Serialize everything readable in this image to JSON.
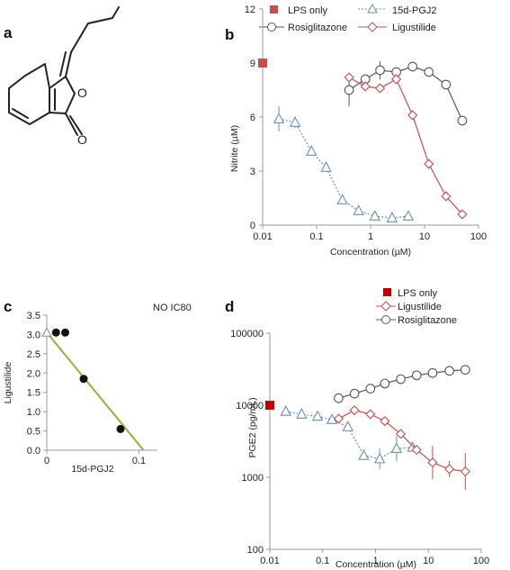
{
  "panels": {
    "a": "a",
    "b": "b",
    "c": "c",
    "d": "d"
  },
  "colors": {
    "lps_b": "#c0504d",
    "lps_d": "#c00000",
    "rosi": "#555555",
    "pgj": "#6d8fb0",
    "lig": "#c0504d",
    "iso_line": "#8cb43a",
    "structure": "#222222"
  },
  "chart_data": [
    {
      "id": "b",
      "type": "line",
      "xlabel": "Concentration (µM)",
      "ylabel": "Nitrite (µM)",
      "x_scale": "log",
      "xlim": [
        0.01,
        100
      ],
      "ylim": [
        0,
        12
      ],
      "xticks": [
        "0.01",
        "0.1",
        "1",
        "10",
        "100"
      ],
      "yticks": [
        "0",
        "3",
        "6",
        "9",
        "12"
      ],
      "legend": [
        "LPS only",
        "15d-PGJ2",
        "Rosiglitazone",
        "Ligustilide"
      ],
      "series": [
        {
          "name": "LPS only",
          "marker": "square",
          "points": [
            [
              0.01,
              9.0
            ]
          ]
        },
        {
          "name": "15d-PGJ2",
          "marker": "triangle",
          "line": "dotted",
          "points": [
            [
              0.02,
              5.9
            ],
            [
              0.04,
              5.7
            ],
            [
              0.08,
              4.1
            ],
            [
              0.15,
              3.2
            ],
            [
              0.3,
              1.4
            ],
            [
              0.6,
              0.8
            ],
            [
              1.2,
              0.5
            ],
            [
              2.5,
              0.4
            ],
            [
              5,
              0.5
            ]
          ],
          "err": [
            0.7,
            0.3,
            0,
            0,
            0,
            0,
            0,
            0,
            0
          ]
        },
        {
          "name": "Rosiglitazone",
          "marker": "circle",
          "line": "solid",
          "points": [
            [
              0.4,
              7.5
            ],
            [
              0.8,
              8.1
            ],
            [
              1.5,
              8.6
            ],
            [
              3,
              8.5
            ],
            [
              6,
              8.8
            ],
            [
              12,
              8.5
            ],
            [
              25,
              7.8
            ],
            [
              50,
              5.8
            ]
          ],
          "err": [
            0.9,
            0,
            0.5,
            0,
            0,
            0,
            0,
            0
          ]
        },
        {
          "name": "Ligustilide",
          "marker": "diamond",
          "line": "solid",
          "points": [
            [
              0.4,
              8.2
            ],
            [
              0.8,
              7.7
            ],
            [
              1.5,
              7.6
            ],
            [
              3,
              8.1
            ],
            [
              6,
              6.1
            ],
            [
              12,
              3.4
            ],
            [
              25,
              1.6
            ],
            [
              50,
              0.6
            ]
          ],
          "err": [
            0,
            0,
            0,
            0,
            0,
            0,
            0,
            0
          ]
        }
      ]
    },
    {
      "id": "c",
      "type": "scatter",
      "title": "NO IC80",
      "xlabel": "15d-PGJ2",
      "ylabel": "Ligustilide",
      "xlim": [
        0,
        0.12
      ],
      "ylim": [
        0,
        3.5
      ],
      "xticks": [
        "0",
        "0.1"
      ],
      "yticks": [
        "0.0",
        "0.5",
        "1.0",
        "1.5",
        "2.0",
        "2.5",
        "3.0",
        "3.5"
      ],
      "points": [
        [
          0.01,
          3.05
        ],
        [
          0.02,
          3.05
        ],
        [
          0.04,
          1.85
        ],
        [
          0.08,
          0.55
        ]
      ],
      "isobole": [
        [
          0,
          3.05
        ],
        [
          0.105,
          0.0
        ]
      ]
    },
    {
      "id": "d",
      "type": "line",
      "xlabel": "Concentration (µM)",
      "ylabel": "PGE2 (pg/mL)",
      "x_scale": "log",
      "y_scale": "log",
      "xlim": [
        0.01,
        100
      ],
      "ylim": [
        100,
        100000
      ],
      "xticks": [
        "0.01",
        "0.1",
        "1",
        "10",
        "100"
      ],
      "yticks": [
        "100",
        "1000",
        "10000",
        "100000"
      ],
      "legend": [
        "LPS only",
        "Ligustilide",
        "Rosiglitazone"
      ],
      "series": [
        {
          "name": "LPS only",
          "marker": "square",
          "points": [
            [
              0.01,
              10000
            ]
          ]
        },
        {
          "name": "15d-PGJ2",
          "marker": "triangle",
          "line": "dotted",
          "points": [
            [
              0.02,
              8200
            ],
            [
              0.04,
              7500
            ],
            [
              0.08,
              7000
            ],
            [
              0.15,
              6300
            ],
            [
              0.3,
              5000
            ],
            [
              0.6,
              2000
            ],
            [
              1.2,
              1800
            ],
            [
              2.5,
              2500
            ],
            [
              5,
              2600
            ]
          ],
          "err_ratio": [
            1,
            1,
            1,
            1,
            1,
            1,
            1.4,
            1.5,
            1
          ]
        },
        {
          "name": "Ligustilide",
          "marker": "diamond",
          "line": "solid",
          "points": [
            [
              0.2,
              6500
            ],
            [
              0.4,
              8500
            ],
            [
              0.8,
              7500
            ],
            [
              1.5,
              6000
            ],
            [
              3,
              4000
            ],
            [
              6,
              2400
            ],
            [
              12,
              1600
            ],
            [
              25,
              1300
            ],
            [
              50,
              1200
            ]
          ],
          "err_ratio": [
            1,
            1,
            1,
            1,
            1,
            1,
            1.7,
            1.3,
            1.8
          ]
        },
        {
          "name": "Rosiglitazone",
          "marker": "circle",
          "line": "solid",
          "points": [
            [
              0.2,
              12500
            ],
            [
              0.4,
              14500
            ],
            [
              0.8,
              17000
            ],
            [
              1.5,
              20000
            ],
            [
              3,
              23000
            ],
            [
              6,
              26000
            ],
            [
              12,
              28000
            ],
            [
              25,
              30000
            ],
            [
              50,
              31000
            ]
          ],
          "err_ratio": [
            1,
            1,
            1,
            1,
            1,
            1,
            1,
            1,
            1
          ]
        }
      ]
    }
  ]
}
